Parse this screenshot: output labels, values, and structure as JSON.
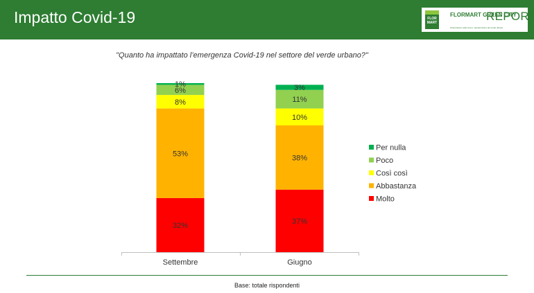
{
  "header": {
    "title": "Impatto Covid-19",
    "logo_mark_text": "FLOR MART",
    "logo_brand": "FLORMART GREEN CITY",
    "logo_report": "REPORT",
    "logo_tagline": "Osservatorio sulla cura e manutenzione del verde urbano",
    "bg_color": "#2e7d32"
  },
  "question": "\"Quanto ha impattato l’emergenza Covid-19 nel settore del verde urbano?\"",
  "footer": {
    "base": "Base: totale rispondenti"
  },
  "chart_data": {
    "type": "bar",
    "stacked": true,
    "percent": true,
    "categories": [
      "Settembre",
      "Giugno"
    ],
    "series": [
      {
        "name": "Molto",
        "color": "#ff0000",
        "values": [
          32,
          37
        ]
      },
      {
        "name": "Abbastanza",
        "color": "#ffb300",
        "values": [
          53,
          38
        ]
      },
      {
        "name": "Così così",
        "color": "#ffff00",
        "values": [
          8,
          10
        ]
      },
      {
        "name": "Poco",
        "color": "#92d050",
        "values": [
          6,
          11
        ]
      },
      {
        "name": "Per nulla",
        "color": "#00b050",
        "values": [
          1,
          3
        ]
      }
    ],
    "data_labels": [
      [
        "32%",
        "37%"
      ],
      [
        "53%",
        "38%"
      ],
      [
        "8%",
        "10%"
      ],
      [
        "6%",
        "11%"
      ],
      [
        "1%",
        "3%"
      ]
    ],
    "ylim": [
      0,
      100
    ],
    "legend": {
      "position": "right",
      "order": [
        "Per nulla",
        "Poco",
        "Così così",
        "Abbastanza",
        "Molto"
      ]
    },
    "grid": false
  }
}
